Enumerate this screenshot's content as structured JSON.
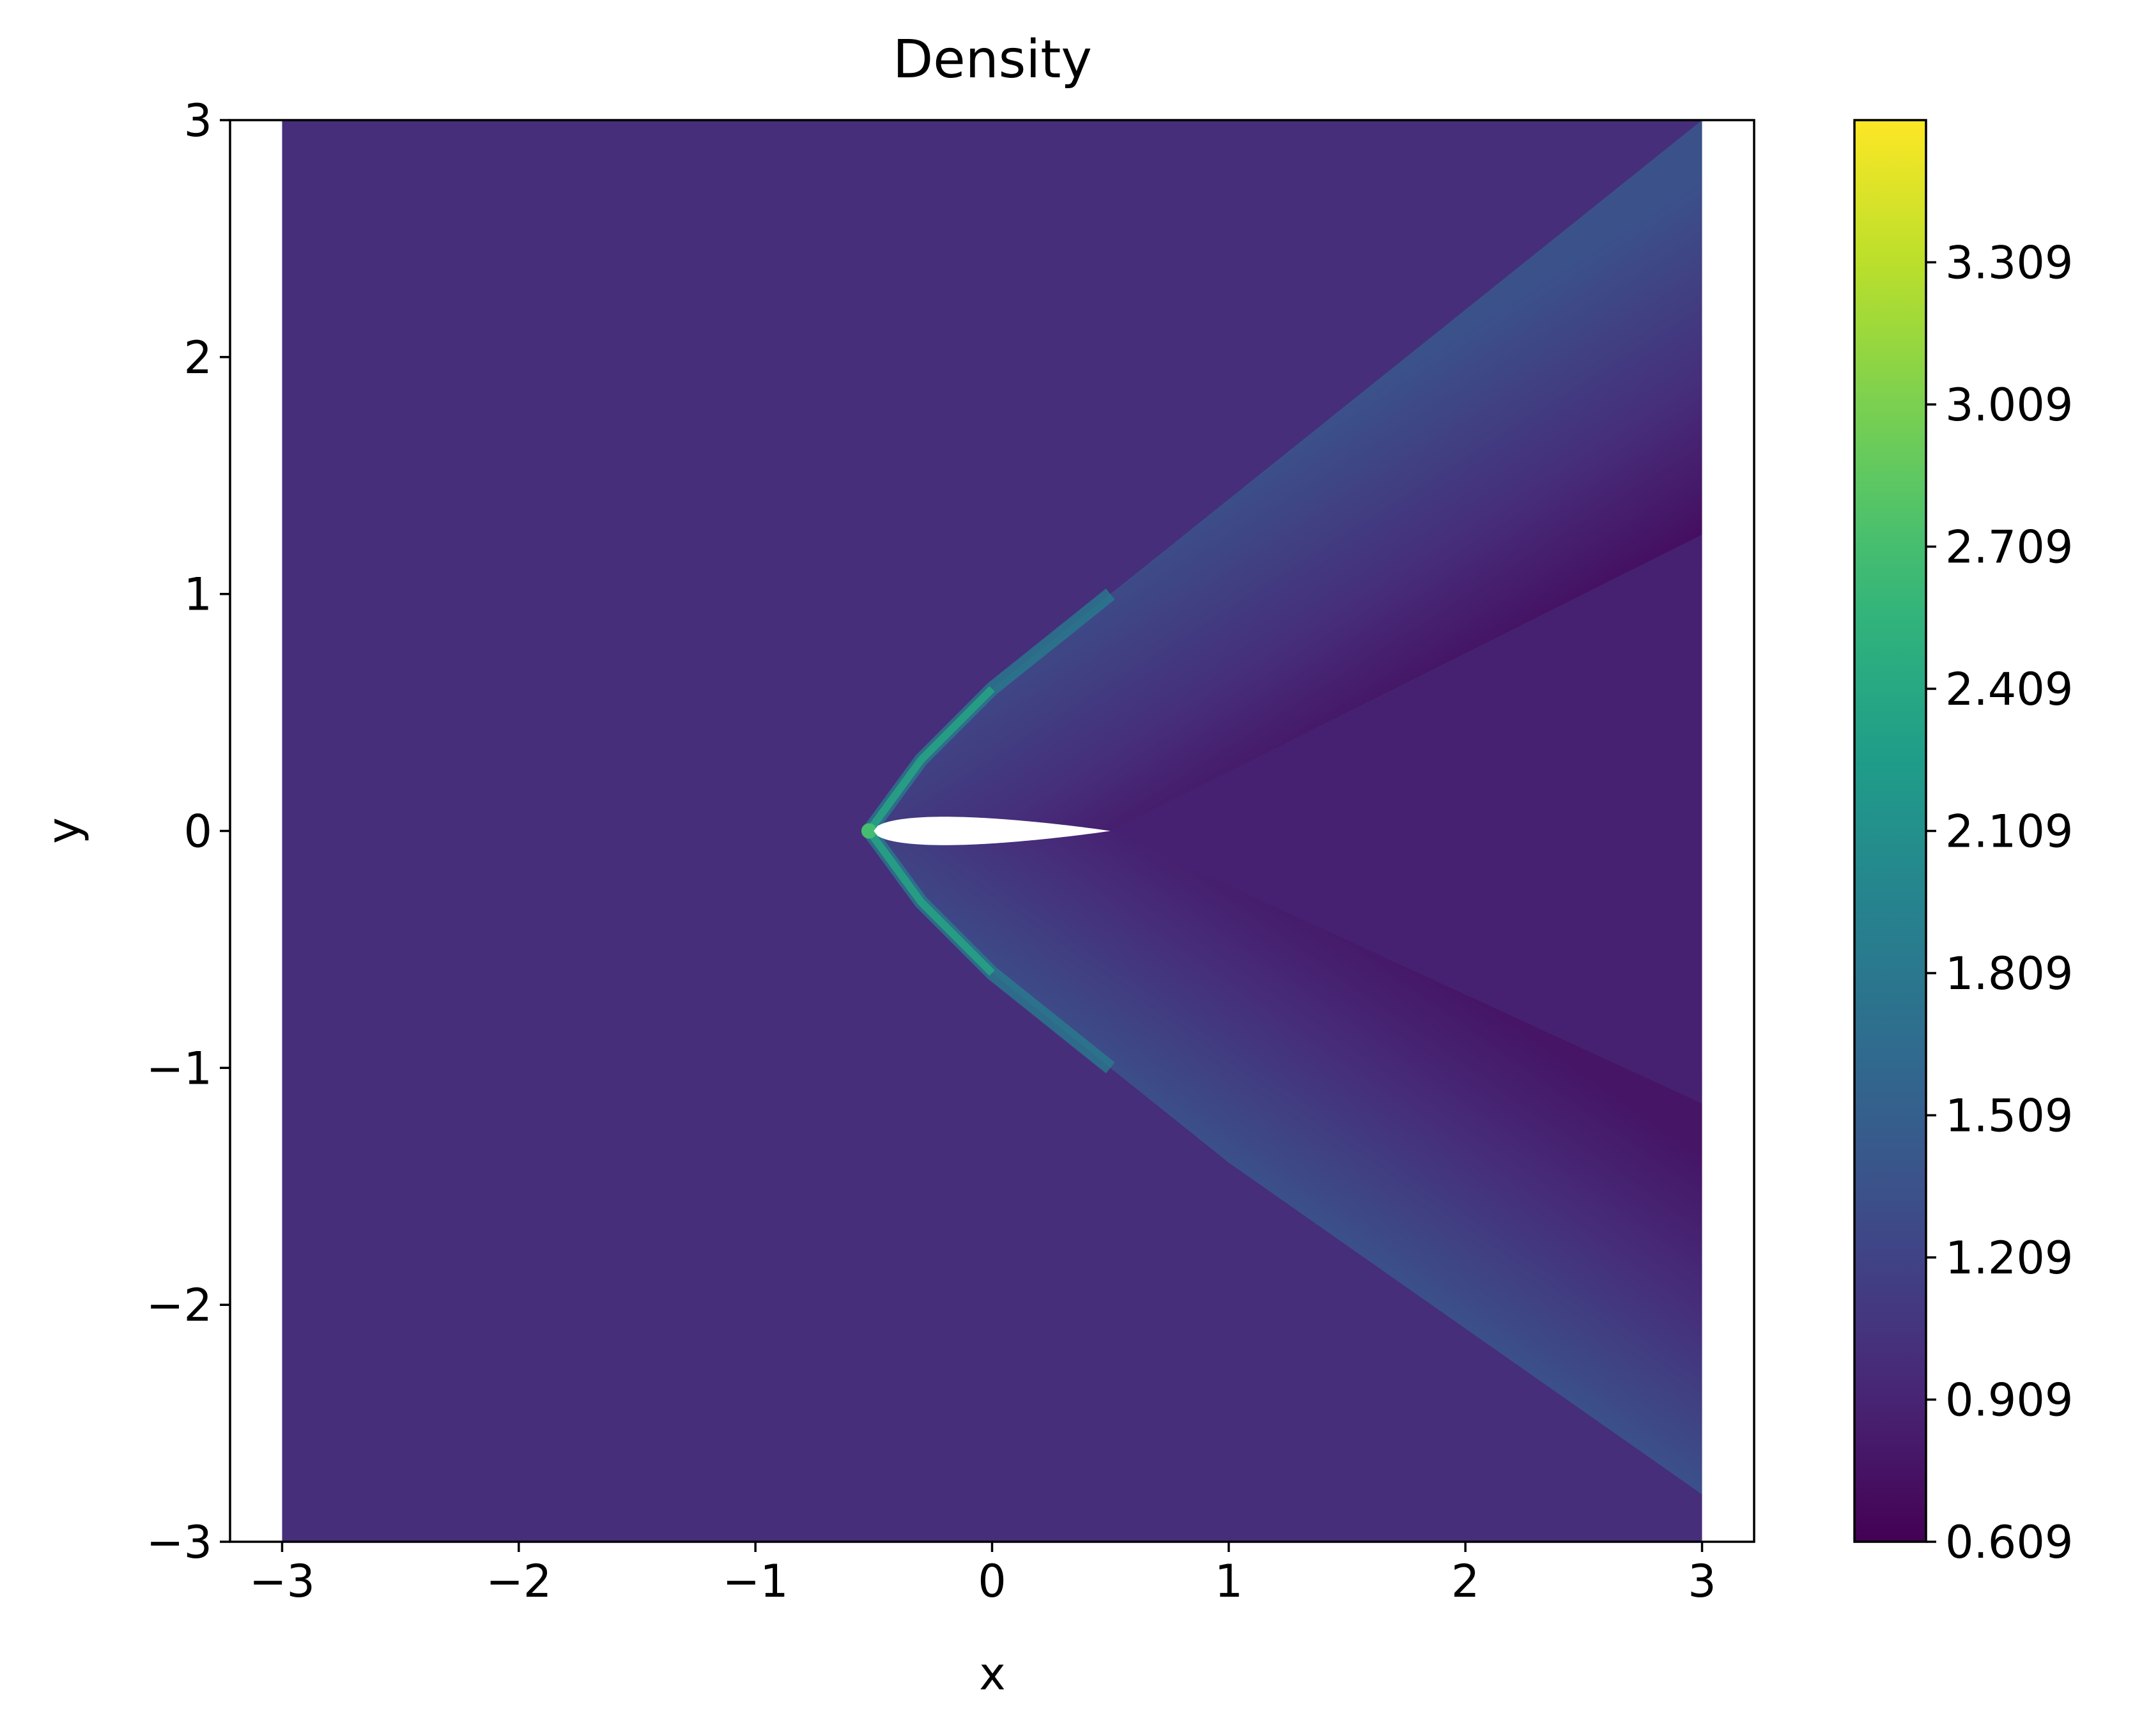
{
  "chart_data": {
    "type": "heatmap",
    "title": "Density",
    "xlabel": "x",
    "ylabel": "y",
    "xlim": [
      -3.22,
      3.22
    ],
    "ylim": [
      -3,
      3
    ],
    "data_extent": {
      "x": [
        -3,
        3
      ],
      "y": [
        -3,
        3
      ]
    },
    "x_ticks": [
      -3,
      -2,
      -1,
      0,
      1,
      2,
      3
    ],
    "x_tick_labels": [
      "−3",
      "−2",
      "−1",
      "0",
      "1",
      "2",
      "3"
    ],
    "y_ticks": [
      -3,
      -2,
      -1,
      0,
      1,
      2,
      3
    ],
    "y_tick_labels": [
      "−3",
      "−2",
      "−1",
      "0",
      "1",
      "2",
      "3"
    ],
    "colorbar": {
      "colormap": "viridis",
      "range": [
        0.609,
        3.609
      ],
      "ticks": [
        0.609,
        0.909,
        1.209,
        1.509,
        1.809,
        2.109,
        2.409,
        2.709,
        3.009,
        3.309
      ],
      "tick_labels": [
        "0.609",
        "0.909",
        "1.209",
        "1.509",
        "1.809",
        "2.109",
        "2.409",
        "2.709",
        "3.009",
        "3.309"
      ]
    },
    "freestream_density": 1.0,
    "airfoil": {
      "leading_edge_x": -0.5,
      "trailing_edge_x": 0.5,
      "max_thickness": 0.12,
      "fill": "#ffffff"
    },
    "shock_upper": [
      [
        -0.52,
        0.0
      ],
      [
        -0.3,
        0.3
      ],
      [
        0.0,
        0.6
      ],
      [
        0.5,
        1.0
      ],
      [
        1.0,
        1.4
      ],
      [
        2.0,
        2.2
      ],
      [
        3.0,
        3.0
      ]
    ],
    "shock_lower": [
      [
        -0.52,
        0.0
      ],
      [
        -0.3,
        -0.3
      ],
      [
        0.0,
        -0.6
      ],
      [
        0.5,
        -1.0
      ],
      [
        1.0,
        -1.4
      ],
      [
        2.0,
        -2.1
      ],
      [
        3.0,
        -2.8
      ]
    ],
    "expansion_upper": [
      [
        0.5,
        0.0
      ],
      [
        3.0,
        1.25
      ]
    ],
    "expansion_lower": [
      [
        0.5,
        0.0
      ],
      [
        3.0,
        -1.15
      ]
    ],
    "region_density": {
      "freestream": 1.0,
      "shock_max": 2.7,
      "post_shock_upper": 1.35,
      "post_shock_lower": 1.38,
      "expansion_min": 0.7,
      "wake": 0.88
    }
  }
}
